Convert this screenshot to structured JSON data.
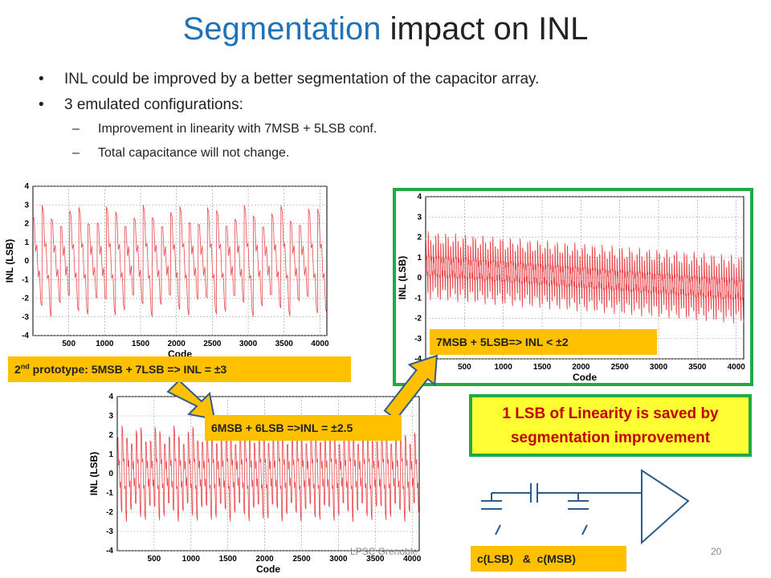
{
  "title": {
    "accent": "Segmentation",
    "rest": "impact on INL"
  },
  "bullets": [
    {
      "text": "INL could be improved by a better segmentation of the capacitor array."
    },
    {
      "text": "3 emulated configurations:",
      "sub": [
        "Improvement in linearity with 7MSB + 5LSB conf.",
        "Total capacitance will not change."
      ]
    }
  ],
  "labels": {
    "proto_prefix": "2",
    "proto_sup": "nd",
    "proto_rest": " prototype: 5MSB + 7LSB => INL = ±3",
    "mid": "6MSB + 6LSB =>INL = ±2.5",
    "best": "7MSB + 5LSB=> INL < ±2",
    "callout_line1": "1 LSB of Linearity is saved by",
    "callout_line2": "segmentation improvement",
    "caps": "c(LSB)   &  c(MSB)"
  },
  "footer": {
    "lab": "LPSC Grenoble",
    "page": "20"
  },
  "colors": {
    "accent": "#1f72b8",
    "series": "#e8474c",
    "tag": "#ffc000",
    "green": "#22a845",
    "callout_text": "#c00000",
    "callout_bg": "#ffff33",
    "schematic": "#2e5c8a"
  },
  "chart_data": [
    {
      "type": "line",
      "name": "5MSB + 7LSB",
      "xlabel": "Code",
      "ylabel": "INL (LSB)",
      "xlim": [
        0,
        4096
      ],
      "ylim": [
        -4,
        4
      ],
      "grid": true,
      "xticks": [
        500,
        1000,
        1500,
        2000,
        2500,
        3000,
        3500,
        4000
      ],
      "yticks": [
        4,
        3,
        2,
        1,
        0,
        -1,
        -2,
        -3,
        -4
      ],
      "segments": 32,
      "amplitude": 3,
      "trend": 0
    },
    {
      "type": "line",
      "name": "6MSB + 6LSB",
      "xlabel": "Code",
      "ylabel": "INL (LSB)",
      "xlim": [
        0,
        4096
      ],
      "ylim": [
        -4,
        4
      ],
      "grid": true,
      "xticks": [
        500,
        1000,
        1500,
        2000,
        2500,
        3000,
        3500,
        4000
      ],
      "yticks": [
        4,
        3,
        2,
        1,
        0,
        -1,
        -2,
        -3,
        -4
      ],
      "segments": 64,
      "amplitude": 2.5,
      "trend": 0
    },
    {
      "type": "line",
      "name": "7MSB + 5LSB",
      "xlabel": "Code",
      "ylabel": "INL (LSB)",
      "xlim": [
        0,
        4096
      ],
      "ylim": [
        -4,
        4
      ],
      "grid": true,
      "xticks": [
        500,
        1000,
        1500,
        2000,
        2500,
        3000,
        3500,
        4000
      ],
      "yticks": [
        4,
        3,
        2,
        1,
        0,
        -1,
        -2,
        -3,
        -4
      ],
      "segments": 128,
      "amplitude": 1.7,
      "trend": -1.2
    }
  ]
}
